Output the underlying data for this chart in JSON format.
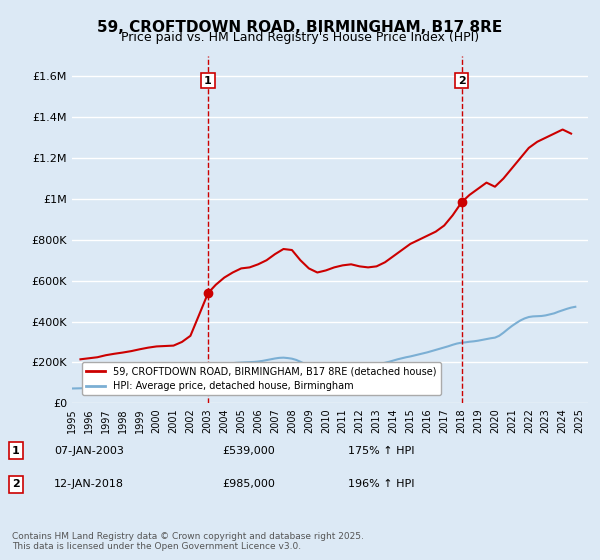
{
  "title": "59, CROFTDOWN ROAD, BIRMINGHAM, B17 8RE",
  "subtitle": "Price paid vs. HM Land Registry's House Price Index (HPI)",
  "background_color": "#dce9f5",
  "plot_bg_color": "#dce9f5",
  "grid_color": "#ffffff",
  "ylim": [
    0,
    1700000
  ],
  "xlim_start": 1995.0,
  "xlim_end": 2025.5,
  "yticks": [
    0,
    200000,
    400000,
    600000,
    800000,
    1000000,
    1200000,
    1400000,
    1600000
  ],
  "ytick_labels": [
    "£0",
    "£200K",
    "£400K",
    "£600K",
    "£800K",
    "£1M",
    "£1.2M",
    "£1.4M",
    "£1.6M"
  ],
  "xtick_years": [
    1995,
    1996,
    1997,
    1998,
    1999,
    2000,
    2001,
    2002,
    2003,
    2004,
    2005,
    2006,
    2007,
    2008,
    2009,
    2010,
    2011,
    2012,
    2013,
    2014,
    2015,
    2016,
    2017,
    2018,
    2019,
    2020,
    2021,
    2022,
    2023,
    2024,
    2025
  ],
  "red_line_color": "#cc0000",
  "blue_line_color": "#7bafd4",
  "vline_color": "#cc0000",
  "point1_x": 2003.04,
  "point1_y": 539000,
  "point1_label": "1",
  "point1_date": "07-JAN-2003",
  "point1_price": "£539,000",
  "point1_hpi": "175% ↑ HPI",
  "point2_x": 2018.04,
  "point2_y": 985000,
  "point2_label": "2",
  "point2_date": "12-JAN-2018",
  "point2_price": "£985,000",
  "point2_hpi": "196% ↑ HPI",
  "legend_label_red": "59, CROFTDOWN ROAD, BIRMINGHAM, B17 8RE (detached house)",
  "legend_label_blue": "HPI: Average price, detached house, Birmingham",
  "footer": "Contains HM Land Registry data © Crown copyright and database right 2025.\nThis data is licensed under the Open Government Licence v3.0.",
  "hpi_data_x": [
    1995.0,
    1995.25,
    1995.5,
    1995.75,
    1996.0,
    1996.25,
    1996.5,
    1996.75,
    1997.0,
    1997.25,
    1997.5,
    1997.75,
    1998.0,
    1998.25,
    1998.5,
    1998.75,
    1999.0,
    1999.25,
    1999.5,
    1999.75,
    2000.0,
    2000.25,
    2000.5,
    2000.75,
    2001.0,
    2001.25,
    2001.5,
    2001.75,
    2002.0,
    2002.25,
    2002.5,
    2002.75,
    2003.0,
    2003.25,
    2003.5,
    2003.75,
    2004.0,
    2004.25,
    2004.5,
    2004.75,
    2005.0,
    2005.25,
    2005.5,
    2005.75,
    2006.0,
    2006.25,
    2006.5,
    2006.75,
    2007.0,
    2007.25,
    2007.5,
    2007.75,
    2008.0,
    2008.25,
    2008.5,
    2008.75,
    2009.0,
    2009.25,
    2009.5,
    2009.75,
    2010.0,
    2010.25,
    2010.5,
    2010.75,
    2011.0,
    2011.25,
    2011.5,
    2011.75,
    2012.0,
    2012.25,
    2012.5,
    2012.75,
    2013.0,
    2013.25,
    2013.5,
    2013.75,
    2014.0,
    2014.25,
    2014.5,
    2014.75,
    2015.0,
    2015.25,
    2015.5,
    2015.75,
    2016.0,
    2016.25,
    2016.5,
    2016.75,
    2017.0,
    2017.25,
    2017.5,
    2017.75,
    2018.0,
    2018.25,
    2018.5,
    2018.75,
    2019.0,
    2019.25,
    2019.5,
    2019.75,
    2020.0,
    2020.25,
    2020.5,
    2020.75,
    2021.0,
    2021.25,
    2021.5,
    2021.75,
    2022.0,
    2022.25,
    2022.5,
    2022.75,
    2023.0,
    2023.25,
    2023.5,
    2023.75,
    2024.0,
    2024.25,
    2024.5,
    2024.75
  ],
  "hpi_data_y": [
    72000,
    72500,
    73000,
    74000,
    75000,
    76000,
    77500,
    79000,
    81000,
    84000,
    87000,
    90000,
    93000,
    96000,
    99000,
    102000,
    106000,
    110000,
    114000,
    118000,
    121000,
    123000,
    124000,
    124500,
    125000,
    127000,
    130000,
    134000,
    140000,
    148000,
    157000,
    165000,
    172000,
    178000,
    183000,
    186000,
    190000,
    193000,
    196000,
    198000,
    199000,
    200000,
    201000,
    202000,
    204000,
    207000,
    211000,
    215000,
    219000,
    222000,
    223000,
    221000,
    218000,
    212000,
    203000,
    193000,
    185000,
    180000,
    178000,
    179000,
    182000,
    183000,
    182000,
    181000,
    181000,
    182000,
    182000,
    181000,
    180000,
    181000,
    183000,
    185000,
    188000,
    193000,
    198000,
    203000,
    209000,
    215000,
    220000,
    225000,
    229000,
    234000,
    239000,
    244000,
    249000,
    255000,
    261000,
    267000,
    273000,
    279000,
    286000,
    292000,
    296000,
    298000,
    301000,
    303000,
    306000,
    310000,
    314000,
    318000,
    321000,
    330000,
    345000,
    362000,
    378000,
    392000,
    405000,
    415000,
    422000,
    425000,
    426000,
    427000,
    430000,
    435000,
    440000,
    448000,
    455000,
    462000,
    468000,
    472000
  ],
  "red_data_x": [
    1995.5,
    1996.0,
    1996.5,
    1997.0,
    1997.5,
    1998.0,
    1998.5,
    1999.0,
    1999.5,
    2000.0,
    2000.5,
    2001.0,
    2001.5,
    2002.0,
    2002.5,
    2003.04,
    2003.5,
    2004.0,
    2004.5,
    2005.0,
    2005.5,
    2006.0,
    2006.5,
    2007.0,
    2007.5,
    2008.0,
    2008.5,
    2009.0,
    2009.5,
    2010.0,
    2010.5,
    2011.0,
    2011.5,
    2012.0,
    2012.5,
    2013.0,
    2013.5,
    2014.0,
    2014.5,
    2015.0,
    2015.5,
    2016.0,
    2016.5,
    2017.0,
    2017.5,
    2018.04,
    2018.5,
    2019.0,
    2019.5,
    2020.0,
    2020.5,
    2021.0,
    2021.5,
    2022.0,
    2022.5,
    2023.0,
    2023.5,
    2024.0,
    2024.5
  ],
  "red_data_y": [
    215000,
    220000,
    225000,
    235000,
    242000,
    248000,
    255000,
    264000,
    272000,
    278000,
    280000,
    282000,
    300000,
    330000,
    430000,
    539000,
    580000,
    615000,
    640000,
    660000,
    665000,
    680000,
    700000,
    730000,
    755000,
    750000,
    700000,
    660000,
    640000,
    650000,
    665000,
    675000,
    680000,
    670000,
    665000,
    670000,
    690000,
    720000,
    750000,
    780000,
    800000,
    820000,
    840000,
    870000,
    920000,
    985000,
    1020000,
    1050000,
    1080000,
    1060000,
    1100000,
    1150000,
    1200000,
    1250000,
    1280000,
    1300000,
    1320000,
    1340000,
    1320000
  ]
}
